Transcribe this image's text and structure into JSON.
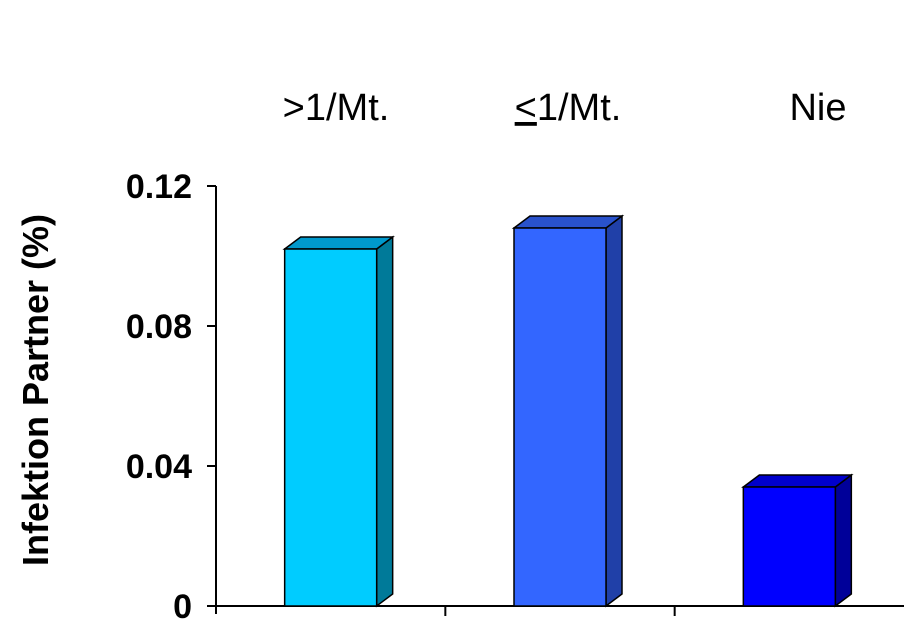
{
  "chart_data": {
    "type": "bar",
    "categories": [
      ">1/Mt.",
      "<1/Mt.",
      "Nie"
    ],
    "category_display": [
      {
        "prefix": ">",
        "underlined": "",
        "rest": "1/Mt."
      },
      {
        "prefix": "",
        "underlined": "<",
        "rest": "1/Mt."
      },
      {
        "prefix": "",
        "underlined": "",
        "rest": "Nie"
      }
    ],
    "values": [
      0.102,
      0.108,
      0.034
    ],
    "ylabel": "Infektion Partner (%)",
    "ylim": [
      0,
      0.12
    ],
    "yticks": [
      0,
      0.04,
      0.08,
      0.12
    ],
    "ytick_labels": [
      "0",
      "0.04",
      "0.08",
      "0.12"
    ],
    "bar_colors": [
      {
        "front": "#00CCFF",
        "top": "#0099CC",
        "side": "#007A99"
      },
      {
        "front": "#3366FF",
        "top": "#2952CC",
        "side": "#2040A8"
      },
      {
        "front": "#0000FF",
        "top": "#0000CC",
        "side": "#000099"
      }
    ],
    "grid": false,
    "legend": "none"
  }
}
